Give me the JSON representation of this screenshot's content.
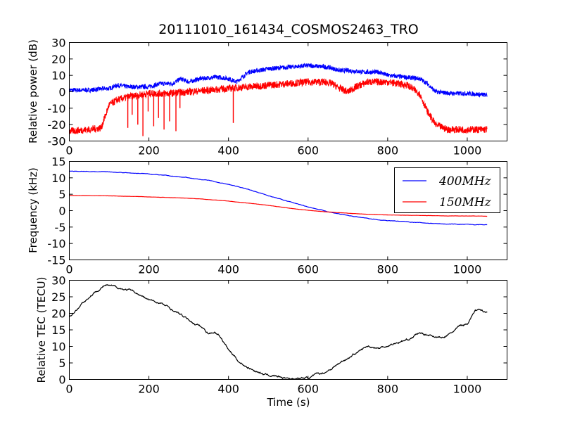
{
  "title": "20111010_161434_COSMOS2463_TRO",
  "chart_data": [
    {
      "type": "line",
      "ylabel": "Relative power (dB)",
      "xlabel": "",
      "xlim": [
        0,
        1100
      ],
      "ylim": [
        -30,
        30
      ],
      "xticks": [
        "0",
        "200",
        "400",
        "600",
        "800",
        "1000"
      ],
      "yticks": [
        "-30",
        "-20",
        "-10",
        "0",
        "10",
        "20",
        "30"
      ],
      "grid": false,
      "series": [
        {
          "color": "#0000ff",
          "noise": 1.4,
          "x": [
            0,
            50,
            90,
            100,
            120,
            150,
            200,
            230,
            260,
            280,
            300,
            330,
            370,
            400,
            420,
            450,
            500,
            550,
            600,
            650,
            680,
            700,
            740,
            780,
            800,
            840,
            880,
            900,
            920,
            960,
            1000,
            1050
          ],
          "y": [
            1,
            1,
            2,
            2,
            4,
            3,
            3,
            5,
            5,
            8,
            6,
            8,
            9,
            8,
            6,
            12,
            14,
            15,
            16,
            15,
            13,
            13,
            12,
            12,
            10,
            9,
            8,
            5,
            0,
            -1,
            -1,
            -2
          ]
        },
        {
          "color": "#ff0000",
          "noise": 2.2,
          "x": [
            0,
            50,
            80,
            90,
            100,
            120,
            150,
            200,
            250,
            300,
            350,
            400,
            450,
            500,
            550,
            600,
            640,
            660,
            680,
            700,
            720,
            750,
            800,
            850,
            880,
            900,
            920,
            950,
            1000,
            1050
          ],
          "y": [
            -24,
            -23,
            -22,
            -15,
            -8,
            -5,
            -3,
            -1,
            -1,
            0,
            1,
            2,
            3,
            4,
            5,
            6,
            6,
            5,
            2,
            0,
            3,
            6,
            6,
            4,
            -1,
            -12,
            -20,
            -23,
            -23,
            -23
          ]
        }
      ],
      "spikes": [
        {
          "x": 147,
          "y": -22
        },
        {
          "x": 158,
          "y": -14
        },
        {
          "x": 172,
          "y": -20
        },
        {
          "x": 185,
          "y": -27
        },
        {
          "x": 198,
          "y": -12
        },
        {
          "x": 212,
          "y": -21
        },
        {
          "x": 224,
          "y": -16
        },
        {
          "x": 238,
          "y": -23
        },
        {
          "x": 252,
          "y": -18
        },
        {
          "x": 268,
          "y": -24
        },
        {
          "x": 278,
          "y": -10
        },
        {
          "x": 412,
          "y": -19
        }
      ]
    },
    {
      "type": "line",
      "ylabel": "Frequency (kHz)",
      "xlabel": "",
      "xlim": [
        0,
        1100
      ],
      "ylim": [
        -15,
        15
      ],
      "xticks": [
        "0",
        "200",
        "400",
        "600",
        "800",
        "1000"
      ],
      "yticks": [
        "-15",
        "-10",
        "-5",
        "0",
        "5",
        "10",
        "15"
      ],
      "grid": false,
      "legend": "upper right",
      "series": [
        {
          "name": "400MHz",
          "color": "#0000ff",
          "noise": 0.08,
          "x": [
            0,
            100,
            200,
            300,
            350,
            400,
            450,
            500,
            550,
            600,
            650,
            700,
            750,
            800,
            850,
            900,
            950,
            1000,
            1050
          ],
          "y": [
            12,
            11.8,
            11.2,
            10,
            9.2,
            8,
            6.5,
            4.6,
            2.8,
            1.2,
            -0.3,
            -1.5,
            -2.4,
            -3.0,
            -3.4,
            -3.8,
            -4.1,
            -4.2,
            -4.4
          ]
        },
        {
          "name": "150MHz",
          "color": "#ff0000",
          "noise": 0.03,
          "x": [
            0,
            100,
            200,
            300,
            350,
            400,
            450,
            500,
            550,
            600,
            650,
            700,
            750,
            800,
            850,
            900,
            950,
            1000,
            1050
          ],
          "y": [
            4.6,
            4.5,
            4.2,
            3.8,
            3.4,
            2.9,
            2.3,
            1.6,
            0.8,
            0.1,
            -0.4,
            -0.8,
            -1.1,
            -1.3,
            -1.4,
            -1.5,
            -1.6,
            -1.6,
            -1.7
          ]
        }
      ]
    },
    {
      "type": "line",
      "ylabel": "Relative TEC (TECU)",
      "xlabel": "Time (s)",
      "xlim": [
        0,
        1100
      ],
      "ylim": [
        0,
        30
      ],
      "xticks": [
        "0",
        "200",
        "400",
        "600",
        "800",
        "1000"
      ],
      "yticks": [
        "0",
        "5",
        "10",
        "15",
        "20",
        "25",
        "30"
      ],
      "grid": false,
      "series": [
        {
          "color": "#000000",
          "noise": 0.35,
          "x": [
            0,
            10,
            30,
            50,
            70,
            90,
            110,
            130,
            150,
            170,
            200,
            230,
            260,
            300,
            330,
            350,
            365,
            380,
            400,
            430,
            460,
            490,
            520,
            560,
            600,
            640,
            680,
            720,
            750,
            780,
            820,
            850,
            880,
            900,
            920,
            940,
            960,
            980,
            1000,
            1020,
            1050
          ],
          "y": [
            19,
            20,
            23,
            25,
            27,
            28.5,
            28,
            27.5,
            27,
            26,
            24,
            23,
            21,
            18,
            16,
            14,
            14.5,
            13,
            9,
            5,
            3,
            1.5,
            1,
            0.3,
            0.5,
            2,
            5,
            8,
            10,
            9.5,
            11,
            12,
            14,
            13.5,
            13,
            12.5,
            14,
            16,
            17,
            21,
            20.5
          ]
        }
      ]
    }
  ]
}
